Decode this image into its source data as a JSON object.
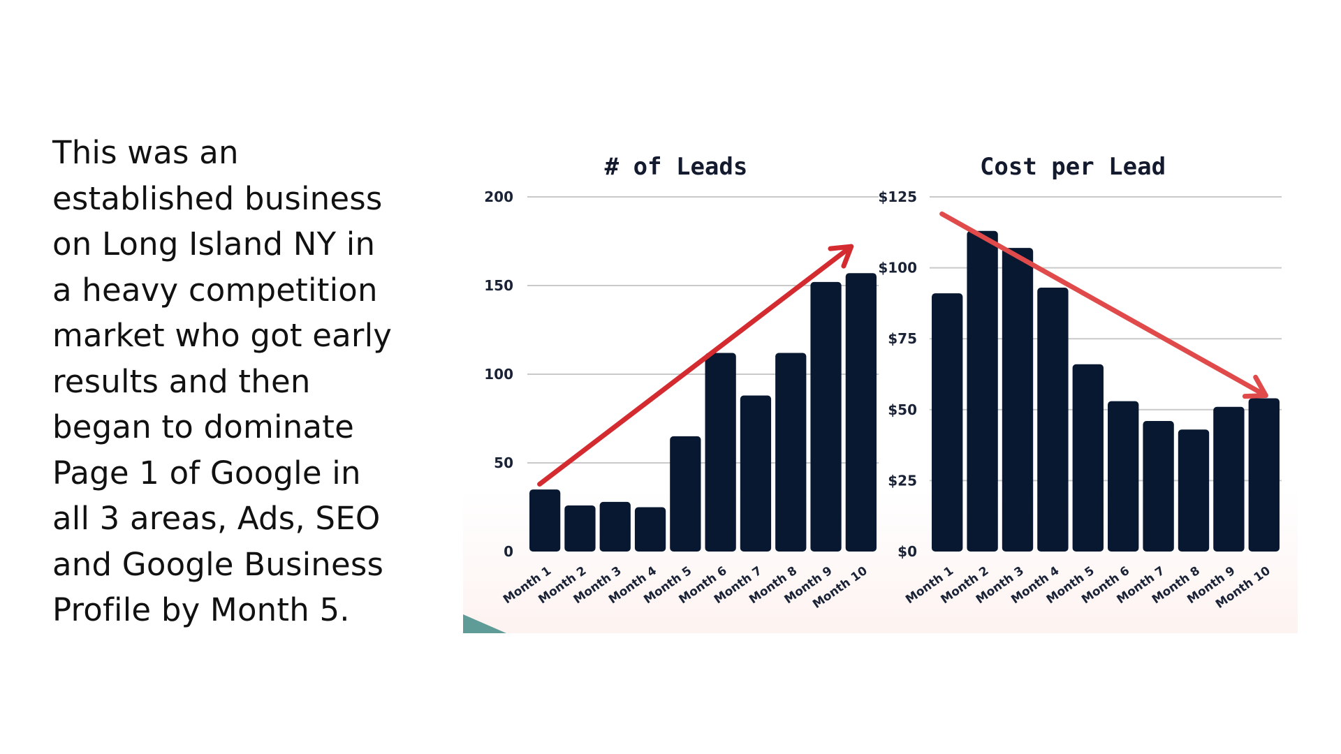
{
  "description_lines": [
    "This was an",
    "established business",
    "on Long Island NY in",
    "a heavy competition",
    "market who got early",
    "results and then",
    "began to dominate",
    "Page 1 of Google in",
    "all 3 areas, Ads, SEO",
    "and Google Business",
    "Profile by Month 5."
  ],
  "colors": {
    "bar": "#071830",
    "arrow": "#d42b30",
    "arrow_right": "#e04a4a",
    "grid": "#c9c9c9",
    "accent_corner": "#5f9c98",
    "panel_bg": "#fdf6f4"
  },
  "chart_data": [
    {
      "type": "bar",
      "title": "# of Leads",
      "categories": [
        "Month 1",
        "Month 2",
        "Month 3",
        "Month 4",
        "Month 5",
        "Month 6",
        "Month 7",
        "Month 8",
        "Month 9",
        "Month 10"
      ],
      "values": [
        35,
        26,
        28,
        25,
        65,
        112,
        88,
        112,
        152,
        157
      ],
      "ylim": [
        0,
        200
      ],
      "yticks": [
        0,
        50,
        100,
        150,
        200
      ],
      "ytick_labels": [
        "0",
        "50",
        "100",
        "150",
        "200"
      ],
      "xlabel": "",
      "ylabel": "",
      "grid": true,
      "trend_arrow": {
        "from": [
          "Month 1",
          38
        ],
        "to": [
          "Month 10",
          172
        ],
        "direction": "up"
      }
    },
    {
      "type": "bar",
      "title": "Cost per Lead",
      "categories": [
        "Month 1",
        "Month 2",
        "Month 3",
        "Month 4",
        "Month 5",
        "Month 6",
        "Month 7",
        "Month 8",
        "Month 9",
        "Month 10"
      ],
      "values": [
        91,
        113,
        107,
        93,
        66,
        53,
        46,
        43,
        51,
        54
      ],
      "ylim": [
        0,
        125
      ],
      "yticks": [
        0,
        25,
        50,
        75,
        100,
        125
      ],
      "ytick_labels": [
        "$0",
        "$25",
        "$50",
        "$75",
        "$100",
        "$125"
      ],
      "xlabel": "",
      "ylabel": "",
      "grid": true,
      "trend_arrow": {
        "from": [
          "Month 1",
          119
        ],
        "to": [
          "Month 10",
          55
        ],
        "direction": "down"
      }
    }
  ]
}
